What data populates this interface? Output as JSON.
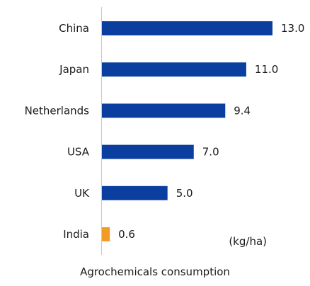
{
  "chart_data": {
    "type": "bar",
    "orientation": "horizontal",
    "categories": [
      "China",
      "Japan",
      "Netherlands",
      "USA",
      "UK",
      "India"
    ],
    "values": [
      13.0,
      11.0,
      9.4,
      7.0,
      5.0,
      0.6
    ],
    "value_labels": [
      "13.0",
      "11.0",
      "9.4",
      "7.0",
      "5.0",
      "0.6"
    ],
    "colors": [
      "#0a3fa0",
      "#0a3fa0",
      "#0a3fa0",
      "#0a3fa0",
      "#0a3fa0",
      "#f29b26"
    ],
    "axis_color": "#c8c8c8",
    "unit": "(kg/ha)",
    "xlabel": "Agrochemicals consumption",
    "xlim": [
      0,
      14
    ],
    "grid": false,
    "legend": "none"
  }
}
